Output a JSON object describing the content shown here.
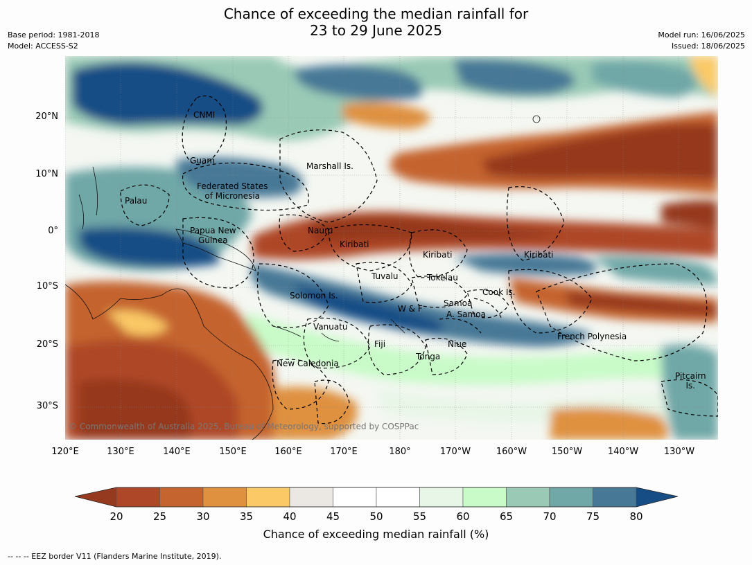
{
  "title_line1": "Chance of exceeding the median rainfall for",
  "title_line2": "23 to 29 June 2025",
  "base_period": "Base period: 1981-2018",
  "model": "Model: ACCESS-S2",
  "model_run": "Model run: 16/06/2025",
  "issued": "Issued: 18/06/2025",
  "copyright": "© Commonwealth of Australia 2025, Bureau of Meteorology, supported by COSPPac",
  "footnote": "--  --  -- EEZ border V11 (Flanders Marine Institute, 2019).",
  "lon_ticks": [
    "120°E",
    "130°E",
    "140°E",
    "150°E",
    "160°E",
    "170°E",
    "180°",
    "170°W",
    "160°W",
    "150°W",
    "140°W",
    "130°W"
  ],
  "lat_ticks": [
    "20°N",
    "10°N",
    "0°",
    "10°S",
    "20°S",
    "30°S"
  ],
  "regions": [
    {
      "name": "CNMI"
    },
    {
      "name": "Guam"
    },
    {
      "name": "Marshall Is."
    },
    {
      "name": "Federated States\nof Micronesia"
    },
    {
      "name": "Palau"
    },
    {
      "name": "Papua New\nGuinea"
    },
    {
      "name": "Nauru"
    },
    {
      "name": "Kiribati"
    },
    {
      "name": "Kiribati"
    },
    {
      "name": "Kiribati"
    },
    {
      "name": "Tuvalu"
    },
    {
      "name": "Tokelau"
    },
    {
      "name": "Solomon Is."
    },
    {
      "name": "Cook Is."
    },
    {
      "name": "Samoa"
    },
    {
      "name": "W & F"
    },
    {
      "name": "A. Samoa"
    },
    {
      "name": "Vanuatu"
    },
    {
      "name": "Fiji"
    },
    {
      "name": "Niue"
    },
    {
      "name": "French Polynesia"
    },
    {
      "name": "Tonga"
    },
    {
      "name": "New Caledonia"
    },
    {
      "name": "Pitcairn\nIs."
    }
  ],
  "colorbar": {
    "label": "Chance of exceeding median rainfall (%)",
    "ticks": [
      "20",
      "25",
      "30",
      "35",
      "40",
      "45",
      "50",
      "55",
      "60",
      "65",
      "70",
      "75",
      "80"
    ],
    "under_color": "#95391f",
    "over_color": "#174d85",
    "colors": [
      "#ae4728",
      "#c5642f",
      "#df9140",
      "#fbc966",
      "#ebe8e3",
      "#ffffff",
      "#ffffff",
      "#e8f6e7",
      "#c8fbc8",
      "#9acab6",
      "#70a7a7",
      "#477896"
    ]
  }
}
